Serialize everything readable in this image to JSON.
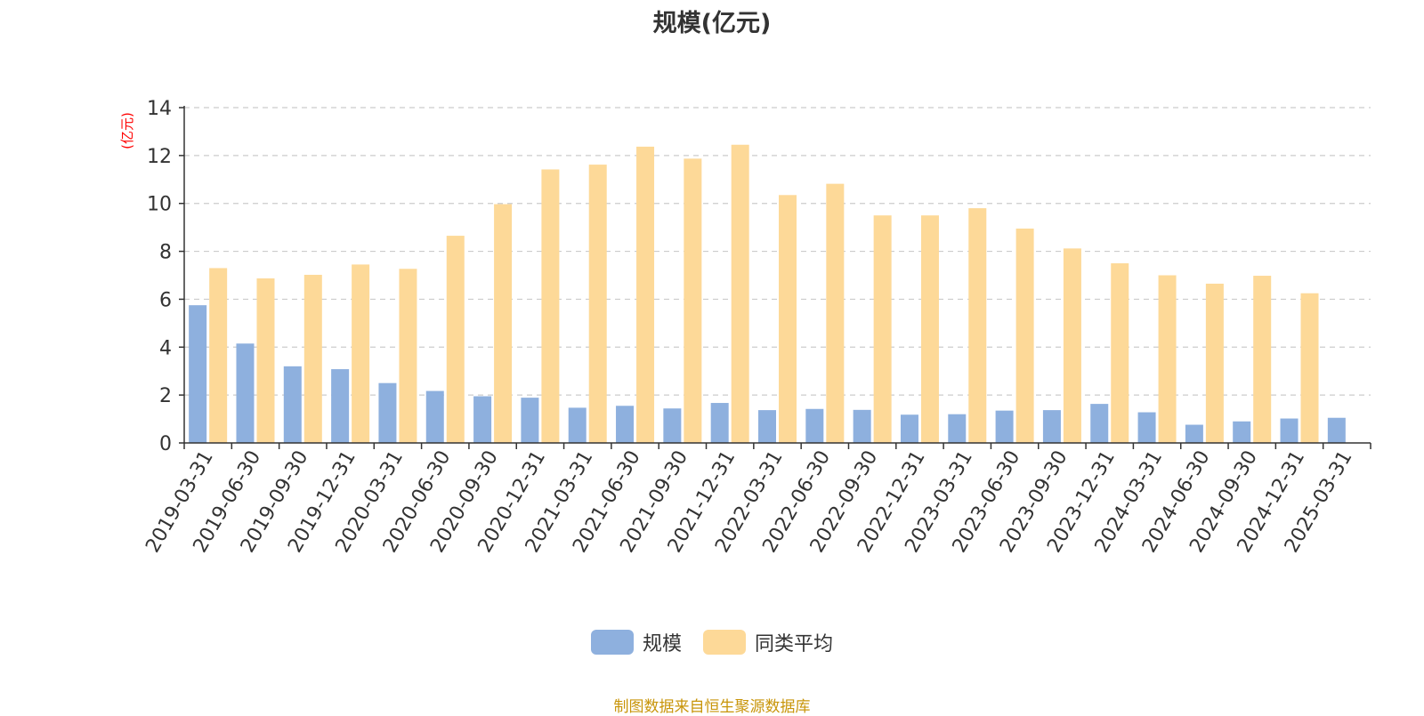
{
  "chart_data": {
    "type": "bar",
    "title": "规模(亿元)",
    "ylabel": "(亿元)",
    "ylim": [
      0,
      14
    ],
    "yticks": [
      0,
      2,
      4,
      6,
      8,
      10,
      12,
      14
    ],
    "grid": true,
    "legend_position": "bottom",
    "categories": [
      "2019-03-31",
      "2019-06-30",
      "2019-09-30",
      "2019-12-31",
      "2020-03-31",
      "2020-06-30",
      "2020-09-30",
      "2020-12-31",
      "2021-03-31",
      "2021-06-30",
      "2021-09-30",
      "2021-12-31",
      "2022-03-31",
      "2022-06-30",
      "2022-09-30",
      "2022-12-31",
      "2023-03-31",
      "2023-06-30",
      "2023-09-30",
      "2023-12-31",
      "2024-03-31",
      "2024-06-30",
      "2024-09-30",
      "2024-12-31",
      "2025-03-31"
    ],
    "series": [
      {
        "name": "规模",
        "color": "#8eb0de",
        "values": [
          5.75,
          4.15,
          3.2,
          3.08,
          2.5,
          2.17,
          1.95,
          1.89,
          1.47,
          1.55,
          1.44,
          1.67,
          1.37,
          1.42,
          1.38,
          1.18,
          1.2,
          1.35,
          1.37,
          1.63,
          1.28,
          0.76,
          0.9,
          1.02,
          1.05
        ]
      },
      {
        "name": "同类平均",
        "color": "#fdd998",
        "values": [
          7.3,
          6.87,
          7.02,
          7.45,
          7.27,
          8.65,
          9.97,
          11.42,
          11.62,
          12.37,
          11.87,
          12.45,
          10.35,
          10.82,
          9.5,
          9.5,
          9.8,
          8.95,
          8.12,
          7.5,
          7.0,
          6.65,
          6.98,
          6.25,
          null
        ]
      }
    ]
  },
  "source_text": "制图数据来自恒生聚源数据库",
  "colors": {
    "title": "#333333",
    "ylabel": "#ff0000",
    "source": "#c8950a",
    "axis": "#333333",
    "grid": "#cccccc"
  }
}
